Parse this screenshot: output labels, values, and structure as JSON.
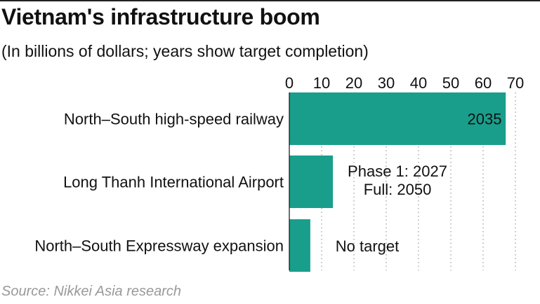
{
  "title": "Vietnam's infrastructure boom",
  "subtitle": "(In billions of dollars; years show target completion)",
  "source": "Source: Nikkei Asia research",
  "colors": {
    "bar": "#1a9e8c",
    "grid": "#999999",
    "axis": "#111111"
  },
  "chart_data": {
    "type": "bar",
    "orientation": "horizontal",
    "title": "Vietnam's infrastructure boom",
    "subtitle": "(In billions of dollars; years show target completion)",
    "xlim": [
      0,
      70
    ],
    "ticks": [
      0,
      10,
      20,
      30,
      40,
      50,
      60,
      70
    ],
    "grid": true,
    "categories": [
      "North–South high-speed railway",
      "Long Thanh International Airport",
      "North–South Expressway expansion"
    ],
    "values": [
      67,
      13.5,
      6.5
    ],
    "annotations": [
      [
        "2035"
      ],
      [
        "Phase 1: 2027",
        "Full: 2050"
      ],
      [
        "No target"
      ]
    ]
  }
}
